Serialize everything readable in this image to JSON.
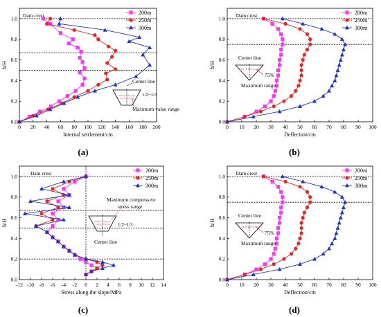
{
  "panel_labels": [
    "(a)",
    "(b)",
    "(c)",
    "(d)"
  ],
  "chart_data": [
    {
      "id": "a",
      "type": "line",
      "xlabel": "Internal settlement/cm",
      "ylabel": "h/H",
      "xlim": [
        0,
        200
      ],
      "ylim": [
        0,
        1.1
      ],
      "xticks": [
        0,
        20,
        40,
        60,
        80,
        100,
        120,
        140,
        160,
        180,
        200
      ],
      "yticks": [
        0.0,
        0.2,
        0.4,
        0.6,
        0.8,
        1.0
      ],
      "hlines": [
        1.0,
        0.67,
        0.5
      ],
      "legend_position": "top-right",
      "annotations": [
        "Dam crest",
        "Center line",
        "1/2~1/3",
        "Maximum value range"
      ],
      "series": [
        {
          "name": "200m",
          "color": "#ff33ff",
          "marker": "square",
          "x": [
            35,
            45,
            60,
            78,
            72,
            85,
            90,
            88,
            92,
            95,
            88,
            95,
            92,
            82,
            70,
            58,
            46,
            30,
            15,
            0
          ],
          "y": [
            1.0,
            0.95,
            0.86,
            0.8,
            0.76,
            0.72,
            0.68,
            0.62,
            0.58,
            0.52,
            0.48,
            0.42,
            0.36,
            0.3,
            0.25,
            0.2,
            0.15,
            0.1,
            0.05,
            0.0
          ]
        },
        {
          "name": "250m",
          "color": "#ee2222",
          "marker": "circle",
          "x": [
            45,
            40,
            80,
            110,
            115,
            130,
            140,
            135,
            128,
            140,
            126,
            128,
            115,
            100,
            80,
            62,
            42,
            20,
            0
          ],
          "y": [
            1.0,
            0.95,
            0.89,
            0.84,
            0.8,
            0.73,
            0.69,
            0.63,
            0.57,
            0.51,
            0.47,
            0.41,
            0.36,
            0.3,
            0.24,
            0.18,
            0.12,
            0.06,
            0.0
          ]
        },
        {
          "name": "300m",
          "color": "#2233cc",
          "marker": "triangle",
          "x": [
            60,
            58,
            125,
            175,
            160,
            190,
            180,
            190,
            170,
            140,
            110,
            85,
            65,
            45,
            25,
            0
          ],
          "y": [
            1.0,
            0.95,
            0.89,
            0.82,
            0.78,
            0.72,
            0.65,
            0.55,
            0.44,
            0.36,
            0.3,
            0.24,
            0.18,
            0.12,
            0.06,
            0.0
          ]
        }
      ]
    },
    {
      "id": "b",
      "type": "line",
      "xlabel": "Deflection/cm",
      "ylabel": "h/H",
      "xlim": [
        0,
        100
      ],
      "ylim": [
        0,
        1.1
      ],
      "xticks": [
        0,
        10,
        20,
        30,
        40,
        50,
        60,
        70,
        80,
        90,
        100
      ],
      "yticks": [
        0.0,
        0.2,
        0.4,
        0.6,
        0.8,
        1.0
      ],
      "hlines": [
        1.0,
        0.75
      ],
      "legend_position": "top-right",
      "annotations": [
        "Dam crest",
        "Center line",
        "75%",
        "Maximum range"
      ],
      "series": [
        {
          "name": "200m",
          "color": "#ff33ff",
          "marker": "square",
          "x": [
            25,
            31,
            35,
            37,
            38,
            38,
            37,
            37,
            36,
            36,
            35,
            35,
            34,
            34,
            33,
            32,
            30,
            26,
            20,
            12,
            0
          ],
          "y": [
            1.0,
            0.95,
            0.9,
            0.85,
            0.8,
            0.75,
            0.7,
            0.65,
            0.6,
            0.55,
            0.5,
            0.45,
            0.4,
            0.35,
            0.3,
            0.25,
            0.2,
            0.15,
            0.1,
            0.05,
            0.0
          ]
        },
        {
          "name": "250m",
          "color": "#ee2222",
          "marker": "circle",
          "x": [
            25,
            40,
            50,
            55,
            57,
            57,
            55,
            53,
            52,
            51,
            51,
            51,
            50,
            49,
            47,
            44,
            39,
            32,
            23,
            12,
            0
          ],
          "y": [
            1.0,
            0.95,
            0.9,
            0.85,
            0.8,
            0.75,
            0.7,
            0.65,
            0.6,
            0.55,
            0.5,
            0.45,
            0.4,
            0.35,
            0.3,
            0.25,
            0.2,
            0.15,
            0.1,
            0.05,
            0.0
          ]
        },
        {
          "name": "300m",
          "color": "#2233cc",
          "marker": "triangle",
          "x": [
            38,
            52,
            65,
            74,
            79,
            81,
            80,
            79,
            78,
            77,
            76,
            75,
            74,
            72,
            70,
            66,
            60,
            50,
            36,
            18,
            0
          ],
          "y": [
            1.0,
            0.95,
            0.9,
            0.85,
            0.8,
            0.75,
            0.7,
            0.65,
            0.6,
            0.55,
            0.5,
            0.45,
            0.4,
            0.35,
            0.3,
            0.25,
            0.2,
            0.15,
            0.1,
            0.05,
            0.0
          ]
        }
      ]
    },
    {
      "id": "c",
      "type": "line",
      "xlabel": "Stress along the slope/MPa",
      "ylabel": "h/H",
      "xlim": [
        -12,
        14
      ],
      "ylim": [
        0,
        1.1
      ],
      "xticks": [
        -12,
        -10,
        -8,
        -6,
        -4,
        -2,
        0,
        2,
        4,
        6,
        8,
        10,
        12,
        14
      ],
      "yticks": [
        0.0,
        0.2,
        0.4,
        0.6,
        0.8,
        1.0
      ],
      "hlines": [
        1.0,
        0.67,
        0.5,
        0.2
      ],
      "vlines": [
        0
      ],
      "legend_position": "top-right",
      "annotations": [
        "Dam crest",
        "Maximum compressive",
        "stress range",
        "1/2~1/3",
        "Center line"
      ],
      "series": [
        {
          "name": "200m",
          "color": "#ff33ff",
          "marker": "square",
          "x": [
            0,
            -2,
            -4,
            -3,
            -5,
            -4,
            -6,
            -5,
            -6,
            -7,
            -6,
            -5,
            -4,
            -3,
            -2,
            -1,
            0,
            1,
            2,
            1,
            0
          ],
          "y": [
            1.0,
            0.95,
            0.88,
            0.82,
            0.76,
            0.7,
            0.64,
            0.58,
            0.52,
            0.46,
            0.41,
            0.37,
            0.32,
            0.28,
            0.24,
            0.2,
            0.17,
            0.14,
            0.11,
            0.08,
            0.05
          ]
        },
        {
          "name": "250m",
          "color": "#ee2222",
          "marker": "circle",
          "x": [
            0,
            -3,
            -6,
            -4,
            -7,
            -5,
            -8,
            -6,
            -9,
            -7,
            -6,
            -5,
            -4,
            -3,
            -2,
            0,
            2,
            3,
            2,
            1,
            0
          ],
          "y": [
            1.0,
            0.95,
            0.88,
            0.82,
            0.76,
            0.7,
            0.64,
            0.58,
            0.52,
            0.46,
            0.41,
            0.37,
            0.32,
            0.28,
            0.24,
            0.2,
            0.17,
            0.14,
            0.11,
            0.08,
            0.05
          ]
        },
        {
          "name": "300m",
          "color": "#2233cc",
          "marker": "triangle",
          "x": [
            0,
            -4,
            -8,
            -3,
            -10,
            -3,
            -11,
            -4,
            -9,
            -7,
            -6,
            -5,
            -4,
            -3,
            -2,
            0,
            3,
            5,
            3,
            1,
            0
          ],
          "y": [
            1.0,
            0.95,
            0.88,
            0.82,
            0.76,
            0.7,
            0.64,
            0.58,
            0.52,
            0.46,
            0.41,
            0.37,
            0.32,
            0.28,
            0.24,
            0.2,
            0.17,
            0.14,
            0.11,
            0.08,
            0.05
          ]
        }
      ]
    },
    {
      "id": "d",
      "type": "line",
      "xlabel": "Deflection/cm",
      "ylabel": "h/H",
      "xlim": [
        0,
        100
      ],
      "ylim": [
        0,
        1.1
      ],
      "xticks": [
        0,
        10,
        20,
        30,
        40,
        50,
        60,
        70,
        80,
        90,
        100
      ],
      "yticks": [
        0.0,
        0.2,
        0.4,
        0.6,
        0.8,
        1.0
      ],
      "hlines": [
        1.0,
        0.75
      ],
      "legend_position": "top-right",
      "annotations": [
        "Dam crest",
        "Center line",
        "75%",
        "Maximum range"
      ],
      "series": [
        {
          "name": "200m",
          "color": "#ff33ff",
          "marker": "square",
          "x": [
            25,
            31,
            35,
            37,
            38,
            38,
            37,
            37,
            36,
            36,
            35,
            35,
            34,
            34,
            33,
            32,
            30,
            26,
            20,
            12,
            0
          ],
          "y": [
            1.0,
            0.95,
            0.9,
            0.85,
            0.8,
            0.75,
            0.7,
            0.65,
            0.6,
            0.55,
            0.5,
            0.45,
            0.4,
            0.35,
            0.3,
            0.25,
            0.2,
            0.15,
            0.1,
            0.05,
            0.0
          ]
        },
        {
          "name": "250m",
          "color": "#ee2222",
          "marker": "circle",
          "x": [
            25,
            40,
            50,
            55,
            57,
            57,
            55,
            53,
            52,
            51,
            51,
            51,
            50,
            49,
            47,
            44,
            39,
            32,
            23,
            12,
            0
          ],
          "y": [
            1.0,
            0.95,
            0.9,
            0.85,
            0.8,
            0.75,
            0.7,
            0.65,
            0.6,
            0.55,
            0.5,
            0.45,
            0.4,
            0.35,
            0.3,
            0.25,
            0.2,
            0.15,
            0.1,
            0.05,
            0.0
          ]
        },
        {
          "name": "300m",
          "color": "#2233cc",
          "marker": "triangle",
          "x": [
            38,
            52,
            65,
            74,
            79,
            81,
            80,
            79,
            78,
            77,
            76,
            75,
            74,
            72,
            70,
            66,
            60,
            50,
            36,
            18,
            0
          ],
          "y": [
            1.0,
            0.95,
            0.9,
            0.85,
            0.8,
            0.75,
            0.7,
            0.65,
            0.6,
            0.55,
            0.5,
            0.45,
            0.4,
            0.35,
            0.3,
            0.25,
            0.2,
            0.15,
            0.1,
            0.05,
            0.0
          ]
        }
      ]
    }
  ]
}
